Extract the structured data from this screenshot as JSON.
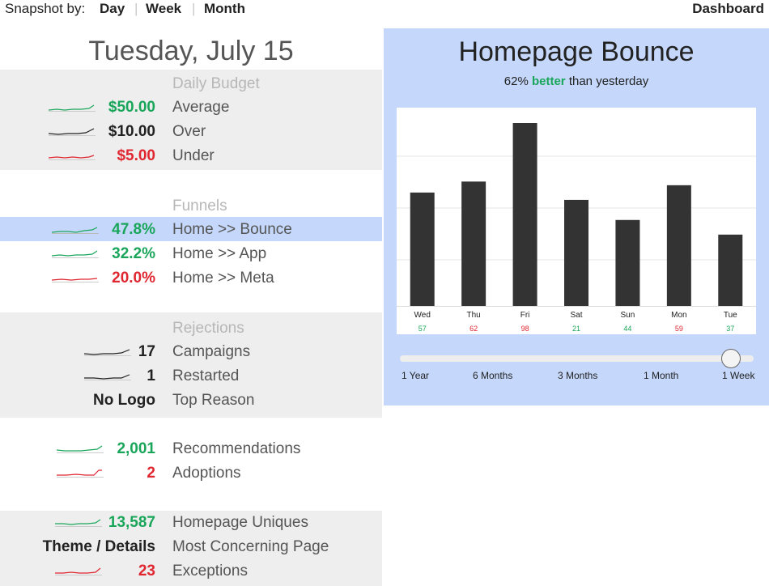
{
  "topbar": {
    "snapshot_label": "Snapshot by:",
    "options": [
      "Day",
      "Week",
      "Month"
    ],
    "separator": "|",
    "dashboard_label": "Dashboard"
  },
  "left": {
    "date_title": "Tuesday, July 15",
    "daily_budget": {
      "title": "Daily Budget",
      "rows": [
        {
          "value": "$50.00",
          "label": "Average",
          "color": "#1aa65a"
        },
        {
          "value": "$10.00",
          "label": "Over",
          "color": "#222222"
        },
        {
          "value": "$5.00",
          "label": "Under",
          "color": "#e02630"
        }
      ]
    },
    "funnels": {
      "title": "Funnels",
      "rows": [
        {
          "value": "47.8%",
          "label": "Home >> Bounce",
          "color": "#1aa65a",
          "selected": true
        },
        {
          "value": "32.2%",
          "label": "Home >> App",
          "color": "#1aa65a"
        },
        {
          "value": "20.0%",
          "label": "Home >> Meta",
          "color": "#e02630"
        }
      ]
    },
    "rejections": {
      "title": "Rejections",
      "rows": [
        {
          "value": "17",
          "label": "Campaigns",
          "color": "#222222"
        },
        {
          "value": "1",
          "label": "Restarted",
          "color": "#222222"
        },
        {
          "value": "No Logo",
          "label": "Top Reason",
          "color": "#222222"
        }
      ]
    },
    "recommendations": {
      "rows": [
        {
          "value": "2,001",
          "label": "Recommendations",
          "color": "#1aa65a"
        },
        {
          "value": "2",
          "label": "Adoptions",
          "color": "#e02630"
        }
      ]
    },
    "pages": {
      "rows": [
        {
          "value": "13,587",
          "label": "Homepage Uniques",
          "color": "#1aa65a"
        },
        {
          "value": "Theme / Details",
          "label": "Most Concerning Page",
          "color": "#222222"
        },
        {
          "value": "23",
          "label": "Exceptions",
          "color": "#e02630"
        }
      ]
    }
  },
  "chart_panel": {
    "title": "Homepage Bounce",
    "subtitle_prefix": "62%",
    "subtitle_emphasis": "better",
    "subtitle_suffix": "than yesterday",
    "slider": {
      "options": [
        "1 Year",
        "6 Months",
        "3 Months",
        "1 Month",
        "1 Week"
      ],
      "selected": "1 Week"
    }
  },
  "chart_data": {
    "type": "bar",
    "categories": [
      "Wed",
      "Thu",
      "Fri",
      "Sat",
      "Sun",
      "Mon",
      "Tue"
    ],
    "values": [
      0.62,
      0.68,
      1.0,
      0.58,
      0.47,
      0.66,
      0.39
    ],
    "value_labels": [
      "57",
      "62",
      "98",
      "21",
      "44",
      "59",
      "37"
    ],
    "value_label_colors": [
      "#1aa65a",
      "#e02630",
      "#e02630",
      "#1aa65a",
      "#1aa65a",
      "#e02630",
      "#1aa65a"
    ],
    "bar_color": "#333333",
    "grid": true,
    "title": "Homepage Bounce",
    "xlabel": "",
    "ylabel": ""
  },
  "colors": {
    "accent_blue": "#c5d8fb",
    "positive": "#1aa65a",
    "negative": "#e02630",
    "band_gray": "#eeeeee"
  }
}
